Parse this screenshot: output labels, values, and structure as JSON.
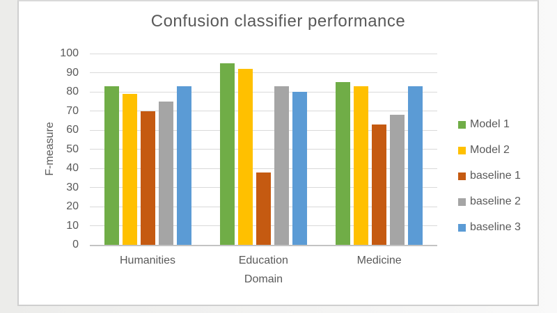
{
  "window": {
    "background_left": "#ececea",
    "background_right": "#f9f9f9",
    "card_background": "#ffffff",
    "card_border_color": "#cfcfcf",
    "text_color": "#595959",
    "gridline_color": "#d9d9d9",
    "axis_line_color": "#c3c3c3"
  },
  "chart_data": {
    "type": "bar",
    "title": "Confusion classifier performance",
    "xlabel": "Domain",
    "ylabel": "F-measure",
    "categories": [
      "Humanities",
      "Education",
      "Medicine"
    ],
    "series": [
      {
        "name": "Model 1",
        "color": "#70AD47",
        "values": [
          83,
          95,
          85
        ]
      },
      {
        "name": "Model 2",
        "color": "#FFC000",
        "values": [
          79,
          92,
          83
        ]
      },
      {
        "name": "baseline 1",
        "color": "#C55A11",
        "values": [
          70,
          38,
          63
        ]
      },
      {
        "name": "baseline 2",
        "color": "#A5A5A5",
        "values": [
          75,
          83,
          68
        ]
      },
      {
        "name": "baseline 3",
        "color": "#5B9BD5",
        "values": [
          83,
          80,
          83
        ]
      }
    ],
    "ylim": [
      0,
      100
    ],
    "yticks": [
      0,
      10,
      20,
      30,
      40,
      50,
      60,
      70,
      80,
      90,
      100
    ],
    "grid": true,
    "legend_position": "right"
  }
}
